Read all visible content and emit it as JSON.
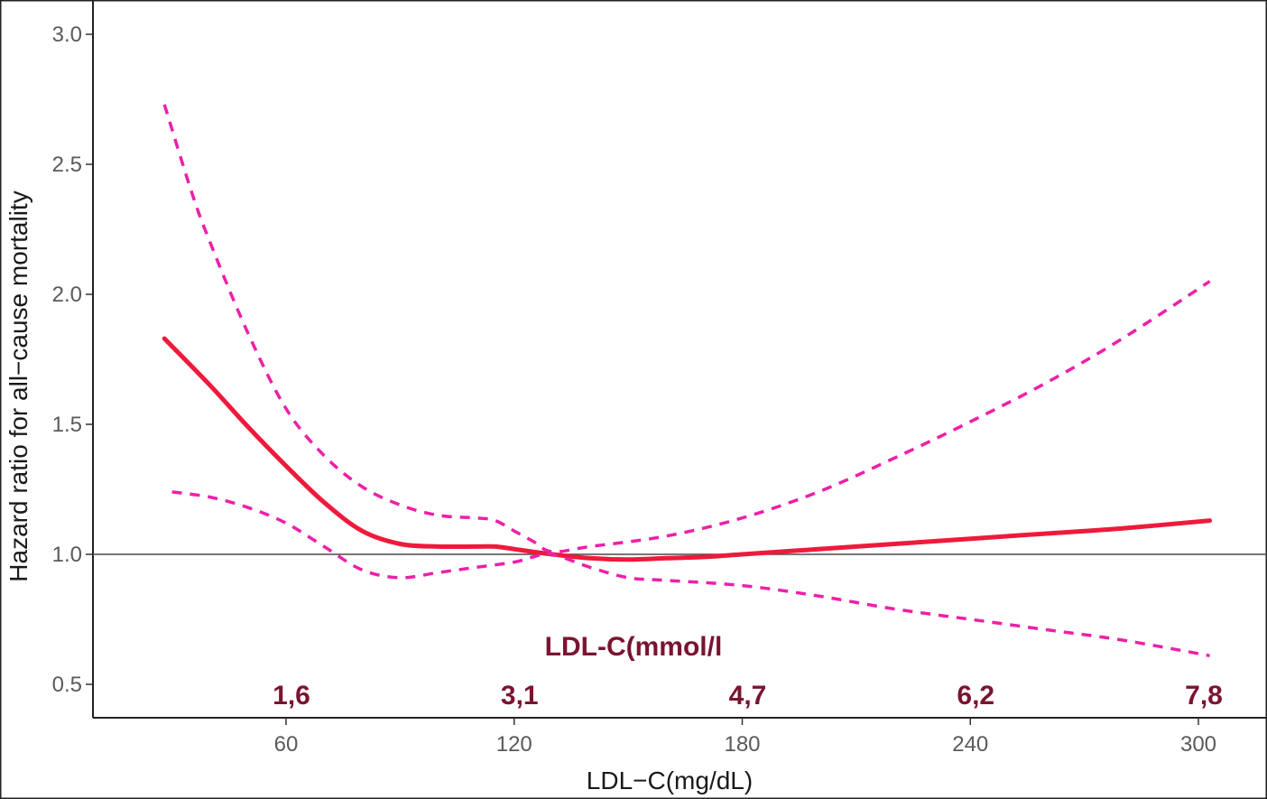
{
  "chart_data": {
    "type": "line",
    "xlabel": "LDL−C(mg/dL)",
    "ylabel": "Hazard ratio for all−cause mortality",
    "xlim": [
      18,
      314
    ],
    "ylim": [
      0.38,
      3.08
    ],
    "x_ticks": [
      60,
      120,
      180,
      240,
      300
    ],
    "x_tick_labels": [
      "60",
      "120",
      "180",
      "240",
      "300"
    ],
    "y_ticks": [
      0.5,
      1.0,
      1.5,
      2.0,
      2.5,
      3.0
    ],
    "y_tick_labels": [
      "0.5",
      "1.0",
      "1.5",
      "2.0",
      "2.5",
      "3.0"
    ],
    "reference_line": 1.0,
    "grid": false,
    "annotation_title": "LDL-C(mmol/l",
    "annotations": [
      {
        "x": 60,
        "label": "1,6"
      },
      {
        "x": 120,
        "label": "3,1"
      },
      {
        "x": 180,
        "label": "4,7"
      },
      {
        "x": 240,
        "label": "6,2"
      },
      {
        "x": 300,
        "label": "7,8"
      }
    ],
    "series": [
      {
        "role": "estimate",
        "color": "#ee1a3c",
        "style": "solid",
        "x": [
          28,
          40,
          50,
          60,
          70,
          80,
          90,
          100,
          110,
          115,
          120,
          130,
          140,
          150,
          160,
          170,
          180,
          200,
          220,
          240,
          260,
          280,
          303
        ],
        "y": [
          1.83,
          1.65,
          1.49,
          1.34,
          1.2,
          1.09,
          1.04,
          1.03,
          1.03,
          1.03,
          1.02,
          1.0,
          0.985,
          0.98,
          0.985,
          0.99,
          1.0,
          1.02,
          1.04,
          1.06,
          1.08,
          1.1,
          1.13
        ]
      },
      {
        "role": "upper-ci",
        "color": "#ee1fa8",
        "style": "dashed",
        "x": [
          28,
          35,
          40,
          50,
          60,
          70,
          80,
          90,
          100,
          110,
          115,
          120,
          125,
          130,
          140,
          160,
          180,
          200,
          220,
          240,
          260,
          280,
          303
        ],
        "y": [
          2.73,
          2.4,
          2.2,
          1.85,
          1.56,
          1.38,
          1.26,
          1.19,
          1.15,
          1.14,
          1.13,
          1.09,
          1.05,
          1.01,
          1.03,
          1.07,
          1.14,
          1.24,
          1.37,
          1.51,
          1.66,
          1.83,
          2.05
        ]
      },
      {
        "role": "lower-ci",
        "color": "#ee1fa8",
        "style": "dashed",
        "x": [
          30,
          40,
          50,
          60,
          70,
          80,
          90,
          100,
          110,
          120,
          125,
          130,
          140,
          150,
          160,
          180,
          200,
          220,
          240,
          260,
          280,
          303
        ],
        "y": [
          1.24,
          1.22,
          1.18,
          1.12,
          1.03,
          0.94,
          0.91,
          0.93,
          0.95,
          0.97,
          0.99,
          1.0,
          0.95,
          0.91,
          0.9,
          0.88,
          0.84,
          0.79,
          0.75,
          0.71,
          0.67,
          0.61
        ]
      }
    ]
  }
}
